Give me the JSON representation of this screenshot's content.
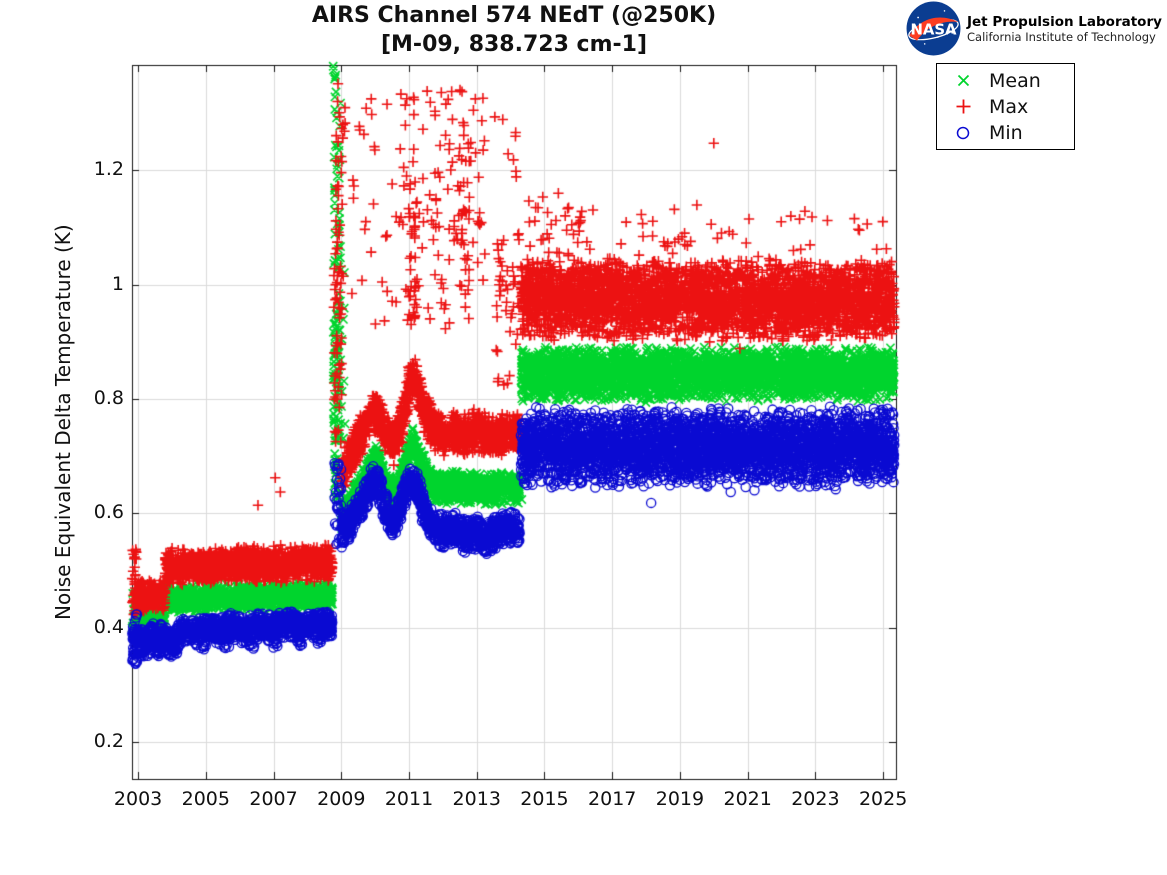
{
  "header": {
    "title_line1": "AIRS Channel 574 NEdT (@250K)",
    "title_line2": "[M-09, 838.723 cm-1]",
    "logo": {
      "org": "NASA",
      "line1": "Jet Propulsion Laboratory",
      "line2": "California Institute of Technology",
      "badge_color": "#0B3D91",
      "swoosh_color": "#FC3D21"
    }
  },
  "chart_data": {
    "type": "scatter",
    "title": "AIRS Channel 574 NEdT (@250K)",
    "subtitle": "[M-09, 838.723 cm-1]",
    "xlabel": "",
    "ylabel": "Noise Equivalent Delta Temperature (K)",
    "xlim": [
      2002.82,
      2025.38
    ],
    "ylim": [
      0.135,
      1.384
    ],
    "grid": "on",
    "legend_position": "upper-right-outside",
    "x_ticks": [
      {
        "v": 2003,
        "label": "2003"
      },
      {
        "v": 2005,
        "label": "2005"
      },
      {
        "v": 2007,
        "label": "2007"
      },
      {
        "v": 2009,
        "label": "2009"
      },
      {
        "v": 2011,
        "label": "2011"
      },
      {
        "v": 2013,
        "label": "2013"
      },
      {
        "v": 2015,
        "label": "2015"
      },
      {
        "v": 2017,
        "label": "2017"
      },
      {
        "v": 2019,
        "label": "2019"
      },
      {
        "v": 2021,
        "label": "2021"
      },
      {
        "v": 2023,
        "label": "2023"
      },
      {
        "v": 2025,
        "label": "2025"
      }
    ],
    "y_ticks": [
      {
        "v": 0.2,
        "label": "0.2"
      },
      {
        "v": 0.4,
        "label": "0.4"
      },
      {
        "v": 0.6,
        "label": "0.6"
      },
      {
        "v": 0.8,
        "label": "0.8"
      },
      {
        "v": 1.0,
        "label": "1"
      },
      {
        "v": 1.2,
        "label": "1.2"
      }
    ],
    "series": [
      {
        "name": "Mean",
        "marker": "x",
        "color": "#00d42d",
        "segments": [
          {
            "kind": "column",
            "t0": 2002.82,
            "t1": 2002.96,
            "lo": 0.382,
            "hi": 0.462,
            "n": 28
          },
          {
            "kind": "band",
            "t0": 2002.96,
            "t1": 2003.8,
            "c0": 0.419,
            "c1": 0.423,
            "spread": 0.02,
            "n": 230
          },
          {
            "kind": "band",
            "t0": 2003.8,
            "t1": 2008.74,
            "c0": 0.449,
            "c1": 0.457,
            "spread": 0.026,
            "n": 1350
          },
          {
            "kind": "column",
            "t0": 2008.76,
            "t1": 2008.98,
            "lo": 0.62,
            "hi": 1.384,
            "n": 95
          },
          {
            "kind": "column",
            "t0": 2008.76,
            "t1": 2008.96,
            "lo": 0.62,
            "hi": 0.95,
            "n": 45
          },
          {
            "kind": "column",
            "t0": 2008.98,
            "t1": 2009.12,
            "lo": 0.68,
            "hi": 1.05,
            "n": 10
          },
          {
            "kind": "path",
            "spread": 0.03,
            "n": 1500,
            "nodes": [
              [
                2009.0,
                0.59
              ],
              [
                2009.3,
                0.618
              ],
              [
                2009.6,
                0.652
              ],
              [
                2009.9,
                0.688
              ],
              [
                2010.05,
                0.695
              ],
              [
                2010.3,
                0.652
              ],
              [
                2010.55,
                0.63
              ],
              [
                2010.8,
                0.668
              ],
              [
                2011.0,
                0.712
              ],
              [
                2011.15,
                0.722
              ],
              [
                2011.4,
                0.68
              ],
              [
                2011.7,
                0.652
              ],
              [
                2012.0,
                0.642
              ],
              [
                2012.35,
                0.65
              ],
              [
                2012.7,
                0.64
              ],
              [
                2013.0,
                0.652
              ],
              [
                2013.3,
                0.64
              ],
              [
                2013.6,
                0.644
              ],
              [
                2014.0,
                0.648
              ],
              [
                2014.27,
                0.642
              ]
            ]
          },
          {
            "kind": "points",
            "pts": [
              [
                2014.3,
                0.658
              ],
              [
                2014.33,
                0.624
              ],
              [
                2014.37,
                0.662
              ]
            ]
          },
          {
            "kind": "band",
            "t0": 2014.3,
            "t1": 2025.33,
            "c0": 0.843,
            "c1": 0.843,
            "spread": 0.05,
            "n": 3600
          }
        ]
      },
      {
        "name": "Max",
        "marker": "plus",
        "color": "#ec1212",
        "segments": [
          {
            "kind": "column",
            "t0": 2002.82,
            "t1": 2002.96,
            "lo": 0.42,
            "hi": 0.54,
            "n": 32
          },
          {
            "kind": "band",
            "t0": 2002.96,
            "t1": 2003.8,
            "c0": 0.453,
            "c1": 0.458,
            "spread": 0.03,
            "n": 230
          },
          {
            "kind": "band",
            "t0": 2003.8,
            "t1": 2008.74,
            "c0": 0.506,
            "c1": 0.513,
            "spread": 0.034,
            "n": 1350
          },
          {
            "kind": "points",
            "pts": [
              [
                2006.54,
                0.614
              ],
              [
                2007.05,
                0.662
              ],
              [
                2007.2,
                0.637
              ]
            ]
          },
          {
            "kind": "column",
            "t0": 2008.78,
            "t1": 2009.02,
            "lo": 0.72,
            "hi": 1.12,
            "n": 55
          },
          {
            "kind": "column",
            "t0": 2008.8,
            "t1": 2009.05,
            "lo": 1.1,
            "hi": 1.37,
            "n": 20
          },
          {
            "kind": "column",
            "t0": 2009.05,
            "t1": 2010.55,
            "lo": 0.87,
            "hi": 1.34,
            "n": 30
          },
          {
            "kind": "path",
            "spread": 0.04,
            "n": 1500,
            "nodes": [
              [
                2009.0,
                0.665
              ],
              [
                2009.3,
                0.7
              ],
              [
                2009.6,
                0.74
              ],
              [
                2009.9,
                0.772
              ],
              [
                2010.05,
                0.778
              ],
              [
                2010.3,
                0.738
              ],
              [
                2010.55,
                0.718
              ],
              [
                2010.8,
                0.76
              ],
              [
                2011.0,
                0.825
              ],
              [
                2011.15,
                0.838
              ],
              [
                2011.4,
                0.785
              ],
              [
                2011.7,
                0.748
              ],
              [
                2012.0,
                0.738
              ],
              [
                2012.35,
                0.745
              ],
              [
                2012.7,
                0.733
              ],
              [
                2013.0,
                0.748
              ],
              [
                2013.3,
                0.735
              ],
              [
                2013.6,
                0.738
              ],
              [
                2014.0,
                0.742
              ],
              [
                2014.27,
                0.738
              ]
            ]
          },
          {
            "kind": "column",
            "t0": 2010.6,
            "t1": 2013.3,
            "lo": 1.1,
            "hi": 1.345,
            "n": 95
          },
          {
            "kind": "column",
            "t0": 2010.6,
            "t1": 2013.3,
            "lo": 0.92,
            "hi": 1.12,
            "n": 40
          },
          {
            "kind": "column",
            "t0": 2010.95,
            "t1": 2011.25,
            "lo": 0.93,
            "hi": 1.12,
            "n": 28
          },
          {
            "kind": "column",
            "t0": 2012.5,
            "t1": 2012.8,
            "lo": 0.98,
            "hi": 1.13,
            "n": 14
          },
          {
            "kind": "column",
            "t0": 2013.55,
            "t1": 2014.25,
            "lo": 0.82,
            "hi": 1.1,
            "n": 42
          },
          {
            "kind": "column",
            "t0": 2013.3,
            "t1": 2014.2,
            "lo": 1.18,
            "hi": 1.31,
            "n": 8
          },
          {
            "kind": "band",
            "t0": 2014.3,
            "t1": 2025.33,
            "c0": 0.975,
            "c1": 0.972,
            "spread": 0.075,
            "n": 3600
          },
          {
            "kind": "column",
            "t0": 2014.3,
            "t1": 2025.33,
            "lo": 1.045,
            "hi": 1.135,
            "n": 55
          },
          {
            "kind": "column",
            "t0": 2014.3,
            "t1": 2016.2,
            "lo": 1.05,
            "hi": 1.16,
            "n": 22
          },
          {
            "kind": "points",
            "pts": [
              [
                2020.0,
                1.247
              ],
              [
                2019.5,
                1.139
              ],
              [
                2022.9,
                1.118
              ],
              [
                2020.77,
                0.888
              ],
              [
                2016.1,
                1.128
              ],
              [
                2015.2,
                1.105
              ],
              [
                2024.3,
                1.095
              ]
            ]
          }
        ]
      },
      {
        "name": "Min",
        "marker": "circle",
        "color": "#0a0ad2",
        "segments": [
          {
            "kind": "column",
            "t0": 2002.82,
            "t1": 2002.98,
            "lo": 0.335,
            "hi": 0.425,
            "n": 42
          },
          {
            "kind": "path",
            "spread": 0.028,
            "n": 240,
            "nodes": [
              [
                2002.98,
                0.372
              ],
              [
                2003.1,
                0.385
              ],
              [
                2003.25,
                0.37
              ],
              [
                2003.4,
                0.388
              ],
              [
                2003.55,
                0.374
              ],
              [
                2003.7,
                0.387
              ],
              [
                2003.8,
                0.378
              ]
            ]
          },
          {
            "kind": "column",
            "t0": 2003.0,
            "t1": 2003.16,
            "lo": 0.345,
            "hi": 0.366,
            "n": 12
          },
          {
            "kind": "column",
            "t0": 2003.48,
            "t1": 2003.64,
            "lo": 0.35,
            "hi": 0.37,
            "n": 10
          },
          {
            "kind": "path",
            "spread": 0.026,
            "n": 1350,
            "nodes": [
              [
                2003.8,
                0.38
              ],
              [
                2004.0,
                0.37
              ],
              [
                2004.3,
                0.397
              ],
              [
                2004.7,
                0.392
              ],
              [
                2005.0,
                0.4
              ],
              [
                2005.4,
                0.393
              ],
              [
                2005.8,
                0.402
              ],
              [
                2006.2,
                0.396
              ],
              [
                2006.6,
                0.403
              ],
              [
                2007.0,
                0.398
              ],
              [
                2007.4,
                0.405
              ],
              [
                2007.8,
                0.4
              ],
              [
                2008.2,
                0.405
              ],
              [
                2008.74,
                0.404
              ]
            ]
          },
          {
            "kind": "column",
            "t0": 2004.02,
            "t1": 2004.18,
            "lo": 0.352,
            "hi": 0.372,
            "n": 10
          },
          {
            "kind": "column",
            "t0": 2004.84,
            "t1": 2005.0,
            "lo": 0.36,
            "hi": 0.378,
            "n": 8
          },
          {
            "kind": "column",
            "t0": 2005.54,
            "t1": 2005.7,
            "lo": 0.362,
            "hi": 0.38,
            "n": 8
          },
          {
            "kind": "column",
            "t0": 2006.28,
            "t1": 2006.44,
            "lo": 0.36,
            "hi": 0.378,
            "n": 8
          },
          {
            "kind": "column",
            "t0": 2006.98,
            "t1": 2007.14,
            "lo": 0.365,
            "hi": 0.382,
            "n": 8
          },
          {
            "kind": "column",
            "t0": 2007.68,
            "t1": 2007.84,
            "lo": 0.368,
            "hi": 0.385,
            "n": 8
          },
          {
            "kind": "column",
            "t0": 2008.24,
            "t1": 2008.4,
            "lo": 0.37,
            "hi": 0.388,
            "n": 8
          },
          {
            "kind": "column",
            "t0": 2008.78,
            "t1": 2009.0,
            "lo": 0.545,
            "hi": 0.705,
            "n": 32
          },
          {
            "kind": "path",
            "spread": 0.032,
            "n": 1500,
            "nodes": [
              [
                2009.0,
                0.565
              ],
              [
                2009.3,
                0.588
              ],
              [
                2009.6,
                0.618
              ],
              [
                2009.9,
                0.652
              ],
              [
                2010.05,
                0.658
              ],
              [
                2010.3,
                0.608
              ],
              [
                2010.55,
                0.582
              ],
              [
                2010.8,
                0.622
              ],
              [
                2011.0,
                0.655
              ],
              [
                2011.15,
                0.66
              ],
              [
                2011.4,
                0.612
              ],
              [
                2011.7,
                0.578
              ],
              [
                2012.0,
                0.566
              ],
              [
                2012.35,
                0.576
              ],
              [
                2012.7,
                0.56
              ],
              [
                2013.0,
                0.568
              ],
              [
                2013.3,
                0.552
              ],
              [
                2013.6,
                0.572
              ],
              [
                2014.0,
                0.575
              ],
              [
                2014.27,
                0.57
              ]
            ]
          },
          {
            "kind": "band",
            "t0": 2014.3,
            "t1": 2025.33,
            "c0": 0.714,
            "c1": 0.716,
            "spread": 0.072,
            "n": 3600
          },
          {
            "kind": "points",
            "pts": [
              [
                2018.15,
                0.618
              ],
              [
                2016.5,
                0.645
              ],
              [
                2020.5,
                0.637
              ],
              [
                2021.2,
                0.64
              ],
              [
                2023.6,
                0.642
              ],
              [
                2015.3,
                0.648
              ],
              [
                2024.6,
                0.652
              ]
            ]
          }
        ]
      }
    ]
  }
}
